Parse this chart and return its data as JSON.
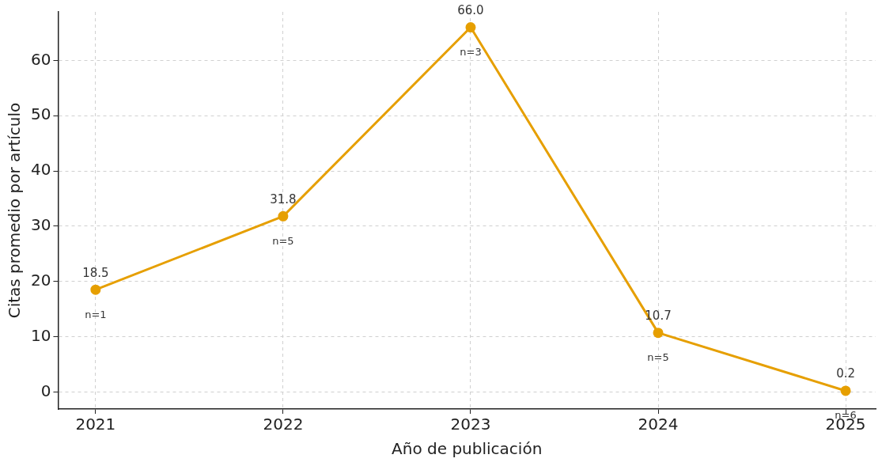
{
  "chart_data": {
    "type": "line",
    "xlabel": "Año de publicación",
    "ylabel": "Citas promedio por artículo",
    "x": [
      2021,
      2022,
      2023,
      2024,
      2025
    ],
    "series": [
      {
        "color": "#e69f00",
        "values": [
          18.5,
          31.8,
          66.0,
          10.7,
          0.2
        ],
        "value_labels": [
          "18.5",
          "31.8",
          "66.0",
          "10.7",
          "0.2"
        ]
      }
    ],
    "annotations": [
      {
        "text": "n=1",
        "x": 2021,
        "y": 18.5
      },
      {
        "text": "n=5",
        "x": 2022,
        "y": 31.8
      },
      {
        "text": "n=3",
        "x": 2023,
        "y": 66.0
      },
      {
        "text": "n=5",
        "x": 2024,
        "y": 10.7
      },
      {
        "text": "n=6",
        "x": 2025,
        "y": 0.2
      }
    ],
    "xlim": [
      2020.8,
      2025.16
    ],
    "xticks": [
      2021,
      2022,
      2023,
      2024,
      2025
    ],
    "ylim": [
      -3.1,
      68.8
    ],
    "yticks": [
      0,
      10,
      20,
      30,
      40,
      50,
      60
    ],
    "grid": true,
    "legend": false,
    "marker": "circle",
    "line_style": "solid"
  }
}
